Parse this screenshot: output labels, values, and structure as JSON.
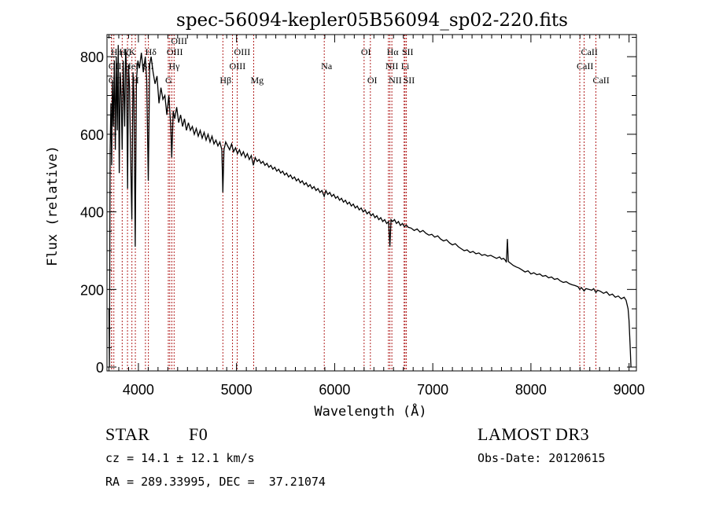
{
  "chart_data": {
    "type": "line",
    "title": "spec-56094-kepler05B56094_sp02-220.fits",
    "xlabel": "Wavelength (Å)",
    "ylabel": "Flux (relative)",
    "xlim": [
      3680,
      9075
    ],
    "ylim": [
      -10,
      857
    ],
    "x_ticks": [
      4000,
      5000,
      6000,
      7000,
      8000,
      9000
    ],
    "x_tick_labels": [
      "4000",
      "5000",
      "6000",
      "7000",
      "8000",
      "9000"
    ],
    "y_ticks": [
      0,
      200,
      400,
      600,
      800
    ],
    "y_tick_labels": [
      "0",
      "200",
      "400",
      "600",
      "800"
    ],
    "grid": false,
    "legend": "none",
    "series": [
      {
        "name": "flux",
        "color": "#000000",
        "points": [
          [
            3700,
            150
          ],
          [
            3705,
            0
          ],
          [
            3712,
            560
          ],
          [
            3720,
            680
          ],
          [
            3728,
            520
          ],
          [
            3735,
            740
          ],
          [
            3745,
            620
          ],
          [
            3755,
            790
          ],
          [
            3765,
            560
          ],
          [
            3775,
            800
          ],
          [
            3785,
            610
          ],
          [
            3795,
            830
          ],
          [
            3805,
            500
          ],
          [
            3815,
            760
          ],
          [
            3825,
            700
          ],
          [
            3835,
            560
          ],
          [
            3845,
            790
          ],
          [
            3860,
            620
          ],
          [
            3870,
            820
          ],
          [
            3880,
            760
          ],
          [
            3890,
            460
          ],
          [
            3900,
            780
          ],
          [
            3910,
            720
          ],
          [
            3920,
            560
          ],
          [
            3933,
            380
          ],
          [
            3945,
            760
          ],
          [
            3955,
            700
          ],
          [
            3968,
            310
          ],
          [
            3980,
            740
          ],
          [
            3995,
            790
          ],
          [
            4010,
            770
          ],
          [
            4030,
            810
          ],
          [
            4050,
            760
          ],
          [
            4070,
            800
          ],
          [
            4085,
            740
          ],
          [
            4101,
            480
          ],
          [
            4115,
            780
          ],
          [
            4130,
            800
          ],
          [
            4150,
            760
          ],
          [
            4170,
            730
          ],
          [
            4190,
            750
          ],
          [
            4210,
            680
          ],
          [
            4230,
            720
          ],
          [
            4250,
            690
          ],
          [
            4270,
            700
          ],
          [
            4290,
            650
          ],
          [
            4310,
            700
          ],
          [
            4330,
            620
          ],
          [
            4340,
            540
          ],
          [
            4355,
            660
          ],
          [
            4370,
            640
          ],
          [
            4390,
            670
          ],
          [
            4410,
            630
          ],
          [
            4430,
            650
          ],
          [
            4450,
            620
          ],
          [
            4470,
            640
          ],
          [
            4490,
            610
          ],
          [
            4510,
            630
          ],
          [
            4530,
            610
          ],
          [
            4550,
            620
          ],
          [
            4570,
            600
          ],
          [
            4590,
            615
          ],
          [
            4610,
            595
          ],
          [
            4630,
            610
          ],
          [
            4650,
            590
          ],
          [
            4670,
            605
          ],
          [
            4690,
            585
          ],
          [
            4710,
            600
          ],
          [
            4730,
            580
          ],
          [
            4750,
            595
          ],
          [
            4770,
            575
          ],
          [
            4790,
            585
          ],
          [
            4810,
            570
          ],
          [
            4830,
            580
          ],
          [
            4850,
            560
          ],
          [
            4861,
            450
          ],
          [
            4872,
            560
          ],
          [
            4890,
            580
          ],
          [
            4910,
            570
          ],
          [
            4930,
            560
          ],
          [
            4950,
            575
          ],
          [
            4970,
            555
          ],
          [
            4990,
            565
          ],
          [
            5010,
            550
          ],
          [
            5030,
            560
          ],
          [
            5050,
            545
          ],
          [
            5070,
            555
          ],
          [
            5090,
            540
          ],
          [
            5110,
            550
          ],
          [
            5130,
            535
          ],
          [
            5150,
            545
          ],
          [
            5172,
            520
          ],
          [
            5190,
            540
          ],
          [
            5210,
            530
          ],
          [
            5230,
            535
          ],
          [
            5250,
            525
          ],
          [
            5270,
            530
          ],
          [
            5290,
            520
          ],
          [
            5310,
            525
          ],
          [
            5330,
            515
          ],
          [
            5350,
            520
          ],
          [
            5370,
            510
          ],
          [
            5390,
            515
          ],
          [
            5410,
            505
          ],
          [
            5430,
            510
          ],
          [
            5450,
            500
          ],
          [
            5470,
            505
          ],
          [
            5490,
            495
          ],
          [
            5510,
            500
          ],
          [
            5530,
            490
          ],
          [
            5550,
            495
          ],
          [
            5570,
            485
          ],
          [
            5590,
            490
          ],
          [
            5610,
            480
          ],
          [
            5630,
            485
          ],
          [
            5650,
            475
          ],
          [
            5670,
            480
          ],
          [
            5690,
            470
          ],
          [
            5710,
            475
          ],
          [
            5730,
            465
          ],
          [
            5750,
            470
          ],
          [
            5770,
            460
          ],
          [
            5790,
            465
          ],
          [
            5810,
            455
          ],
          [
            5830,
            460
          ],
          [
            5850,
            450
          ],
          [
            5870,
            455
          ],
          [
            5893,
            440
          ],
          [
            5910,
            455
          ],
          [
            5930,
            445
          ],
          [
            5950,
            450
          ],
          [
            5970,
            440
          ],
          [
            5990,
            445
          ],
          [
            6010,
            435
          ],
          [
            6030,
            440
          ],
          [
            6050,
            430
          ],
          [
            6070,
            435
          ],
          [
            6090,
            425
          ],
          [
            6110,
            430
          ],
          [
            6130,
            420
          ],
          [
            6150,
            425
          ],
          [
            6170,
            415
          ],
          [
            6190,
            420
          ],
          [
            6210,
            410
          ],
          [
            6230,
            415
          ],
          [
            6250,
            405
          ],
          [
            6270,
            410
          ],
          [
            6290,
            400
          ],
          [
            6310,
            405
          ],
          [
            6330,
            395
          ],
          [
            6350,
            400
          ],
          [
            6370,
            390
          ],
          [
            6390,
            395
          ],
          [
            6410,
            385
          ],
          [
            6430,
            390
          ],
          [
            6450,
            380
          ],
          [
            6470,
            385
          ],
          [
            6490,
            375
          ],
          [
            6510,
            380
          ],
          [
            6530,
            370
          ],
          [
            6550,
            375
          ],
          [
            6563,
            310
          ],
          [
            6575,
            380
          ],
          [
            6590,
            375
          ],
          [
            6610,
            380
          ],
          [
            6630,
            370
          ],
          [
            6650,
            375
          ],
          [
            6670,
            365
          ],
          [
            6690,
            370
          ],
          [
            6710,
            362
          ],
          [
            6730,
            366
          ],
          [
            6750,
            360
          ],
          [
            6780,
            358
          ],
          [
            6810,
            352
          ],
          [
            6840,
            356
          ],
          [
            6870,
            348
          ],
          [
            6900,
            352
          ],
          [
            6930,
            345
          ],
          [
            6960,
            340
          ],
          [
            6990,
            342
          ],
          [
            7020,
            335
          ],
          [
            7050,
            338
          ],
          [
            7080,
            330
          ],
          [
            7110,
            325
          ],
          [
            7140,
            328
          ],
          [
            7170,
            320
          ],
          [
            7200,
            315
          ],
          [
            7230,
            318
          ],
          [
            7260,
            310
          ],
          [
            7290,
            305
          ],
          [
            7320,
            300
          ],
          [
            7350,
            302
          ],
          [
            7380,
            295
          ],
          [
            7410,
            298
          ],
          [
            7440,
            292
          ],
          [
            7470,
            294
          ],
          [
            7500,
            288
          ],
          [
            7530,
            290
          ],
          [
            7560,
            286
          ],
          [
            7590,
            288
          ],
          [
            7620,
            284
          ],
          [
            7650,
            280
          ],
          [
            7680,
            284
          ],
          [
            7700,
            278
          ],
          [
            7720,
            280
          ],
          [
            7740,
            275
          ],
          [
            7750,
            270
          ],
          [
            7760,
            330
          ],
          [
            7770,
            272
          ],
          [
            7790,
            268
          ],
          [
            7820,
            262
          ],
          [
            7850,
            258
          ],
          [
            7880,
            255
          ],
          [
            7910,
            250
          ],
          [
            7940,
            245
          ],
          [
            7970,
            248
          ],
          [
            8000,
            240
          ],
          [
            8030,
            243
          ],
          [
            8060,
            238
          ],
          [
            8090,
            240
          ],
          [
            8120,
            234
          ],
          [
            8150,
            236
          ],
          [
            8180,
            230
          ],
          [
            8210,
            232
          ],
          [
            8240,
            226
          ],
          [
            8270,
            228
          ],
          [
            8300,
            222
          ],
          [
            8330,
            218
          ],
          [
            8360,
            220
          ],
          [
            8390,
            215
          ],
          [
            8420,
            212
          ],
          [
            8450,
            210
          ],
          [
            8480,
            207
          ],
          [
            8498,
            200
          ],
          [
            8515,
            205
          ],
          [
            8542,
            196
          ],
          [
            8560,
            202
          ],
          [
            8590,
            200
          ],
          [
            8620,
            198
          ],
          [
            8640,
            202
          ],
          [
            8662,
            192
          ],
          [
            8680,
            198
          ],
          [
            8710,
            195
          ],
          [
            8740,
            190
          ],
          [
            8770,
            194
          ],
          [
            8800,
            185
          ],
          [
            8830,
            188
          ],
          [
            8860,
            180
          ],
          [
            8890,
            183
          ],
          [
            8920,
            176
          ],
          [
            8950,
            180
          ],
          [
            8970,
            172
          ],
          [
            8990,
            150
          ],
          [
            9000,
            120
          ],
          [
            9010,
            60
          ],
          [
            9020,
            0
          ]
        ]
      }
    ],
    "emission_lines": [
      {
        "label": "OII",
        "wavelength": 3727,
        "row": 3
      },
      {
        "label": "OIII",
        "wavelength": 3727,
        "row": 2
      },
      {
        "label": "Hη",
        "wavelength": 3750,
        "row": 1
      },
      {
        "label": "Hζ",
        "wavelength": 3835,
        "row": 1
      },
      {
        "label": "HeI",
        "wavelength": 3889,
        "row": 2
      },
      {
        "label": "K",
        "wavelength": 3934,
        "row": 1
      },
      {
        "label": "H",
        "wavelength": 3969,
        "row": 3
      },
      {
        "label": "SII",
        "wavelength": 4072,
        "row": 2
      },
      {
        "label": "Hδ",
        "wavelength": 4102,
        "row": 1
      },
      {
        "label": "OIII",
        "wavelength": 4320,
        "row": 1
      },
      {
        "label": "Hγ",
        "wavelength": 4341,
        "row": 2
      },
      {
        "label": "G",
        "wavelength": 4305,
        "row": 3
      },
      {
        "label": "OIII",
        "wavelength": 4364,
        "row": 0
      },
      {
        "label": "Hβ",
        "wavelength": 4861,
        "row": 3
      },
      {
        "label": "OIII",
        "wavelength": 4959,
        "row": 2
      },
      {
        "label": "OIII",
        "wavelength": 5007,
        "row": 1
      },
      {
        "label": "Mg",
        "wavelength": 5175,
        "row": 3
      },
      {
        "label": "Na",
        "wavelength": 5894,
        "row": 2
      },
      {
        "label": "OI",
        "wavelength": 6300,
        "row": 1
      },
      {
        "label": "OI",
        "wavelength": 6364,
        "row": 3
      },
      {
        "label": "NII",
        "wavelength": 6548,
        "row": 2
      },
      {
        "label": "Hα",
        "wavelength": 6563,
        "row": 1
      },
      {
        "label": "NII",
        "wavelength": 6583,
        "row": 3
      },
      {
        "label": "Li",
        "wavelength": 6708,
        "row": 2
      },
      {
        "label": "SII",
        "wavelength": 6717,
        "row": 1
      },
      {
        "label": "SII",
        "wavelength": 6731,
        "row": 3
      },
      {
        "label": "CaII",
        "wavelength": 8498,
        "row": 2
      },
      {
        "label": "CaII",
        "wavelength": 8542,
        "row": 1
      },
      {
        "label": "CaII",
        "wavelength": 8662,
        "row": 3
      }
    ],
    "line_marker_color": "#b22222"
  },
  "info": {
    "object_class": "STAR",
    "subclass": "F0",
    "survey": "LAMOST DR3",
    "redshift": "cz = 14.1 ± 12.1 km/s",
    "obs_date": "Obs-Date: 20120615",
    "coords": "RA = 289.33995, DEC =  37.21074"
  }
}
